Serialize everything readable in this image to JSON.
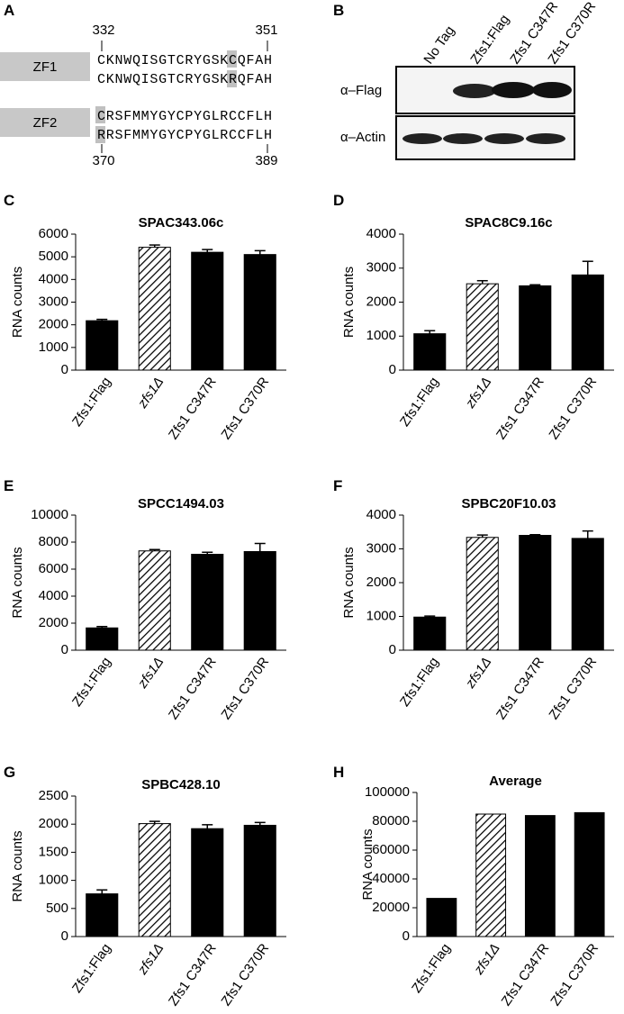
{
  "panel_labels": [
    "A",
    "B",
    "C",
    "D",
    "E",
    "F",
    "G",
    "H"
  ],
  "sequence_panel": {
    "zf1": {
      "label": "ZF1",
      "start": "332",
      "end": "351",
      "wild_type": "CKNWQISGTCRYGSKCQFAH",
      "mutant": "CKNWQISGTCRYGSKRQFAH"
    },
    "zf2": {
      "label": "ZF2",
      "start": "370",
      "end": "389",
      "wild_type": "CRSFMMYGYCPYGLRCCFLH",
      "mutant": "RRSFMMYGYCPYGLRCCFLH"
    }
  },
  "blot": {
    "lanes": [
      "No Tag",
      "Zfs1:Flag",
      "Zfs1 C347R",
      "Zfs1 C370R"
    ],
    "rows": [
      "α–Flag",
      "α–Actin"
    ]
  },
  "chart_data": [
    {
      "type": "bar",
      "title": "SPAC343.06c",
      "ylabel": "RNA counts",
      "categories": [
        "Zfs1:Flag",
        "zfs1Δ",
        "Zfs1 C347R",
        "Zfs1 C370R"
      ],
      "values": [
        2180,
        5420,
        5200,
        5100
      ],
      "errors": [
        60,
        100,
        120,
        170
      ],
      "fills": [
        "solid",
        "hatched",
        "solid",
        "solid"
      ],
      "color": "#000000",
      "ylim": [
        0,
        6000
      ],
      "yticks": [
        0,
        1000,
        2000,
        3000,
        4000,
        5000,
        6000
      ]
    },
    {
      "type": "bar",
      "title": "SPAC8C9.16c",
      "ylabel": "RNA counts",
      "categories": [
        "Zfs1:Flag",
        "zfs1Δ",
        "Zfs1 C347R",
        "Zfs1 C370R"
      ],
      "values": [
        1070,
        2540,
        2480,
        2800
      ],
      "errors": [
        90,
        90,
        30,
        400
      ],
      "fills": [
        "solid",
        "hatched",
        "solid",
        "solid"
      ],
      "color": "#000000",
      "ylim": [
        0,
        4000
      ],
      "yticks": [
        0,
        1000,
        2000,
        3000,
        4000
      ]
    },
    {
      "type": "bar",
      "title": "SPCC1494.03",
      "ylabel": "RNA counts",
      "categories": [
        "Zfs1:Flag",
        "zfs1Δ",
        "Zfs1 C347R",
        "Zfs1 C370R"
      ],
      "values": [
        1650,
        7350,
        7100,
        7300
      ],
      "errors": [
        100,
        100,
        150,
        600
      ],
      "fills": [
        "solid",
        "hatched",
        "solid",
        "solid"
      ],
      "color": "#000000",
      "ylim": [
        0,
        10000
      ],
      "yticks": [
        0,
        2000,
        4000,
        6000,
        8000,
        10000
      ]
    },
    {
      "type": "bar",
      "title": "SPBC20F10.03",
      "ylabel": "RNA counts",
      "categories": [
        "Zfs1:Flag",
        "zfs1Δ",
        "Zfs1 C347R",
        "Zfs1 C370R"
      ],
      "values": [
        980,
        3340,
        3400,
        3310
      ],
      "errors": [
        30,
        70,
        20,
        220
      ],
      "fills": [
        "solid",
        "hatched",
        "solid",
        "solid"
      ],
      "color": "#000000",
      "ylim": [
        0,
        4000
      ],
      "yticks": [
        0,
        1000,
        2000,
        3000,
        4000
      ]
    },
    {
      "type": "bar",
      "title": "SPBC428.10",
      "ylabel": "RNA counts",
      "categories": [
        "Zfs1:Flag",
        "zfs1Δ",
        "Zfs1 C347R",
        "Zfs1 C370R"
      ],
      "values": [
        760,
        2010,
        1920,
        1980
      ],
      "errors": [
        70,
        40,
        70,
        50
      ],
      "fills": [
        "solid",
        "hatched",
        "solid",
        "solid"
      ],
      "color": "#000000",
      "ylim": [
        0,
        2500
      ],
      "yticks": [
        0,
        500,
        1000,
        1500,
        2000,
        2500
      ]
    },
    {
      "type": "bar",
      "title": "Average",
      "ylabel": "RNA counts",
      "categories": [
        "Zfs1:Flag",
        "zfs1Δ",
        "Zfs1 C347R",
        "Zfs1 C370R"
      ],
      "values": [
        26500,
        85000,
        84000,
        86000
      ],
      "fills": [
        "solid",
        "hatched",
        "solid",
        "solid"
      ],
      "color": "#000000",
      "ylim": [
        0,
        100000
      ],
      "yticks": [
        0,
        20000,
        40000,
        60000,
        80000,
        100000
      ]
    }
  ]
}
